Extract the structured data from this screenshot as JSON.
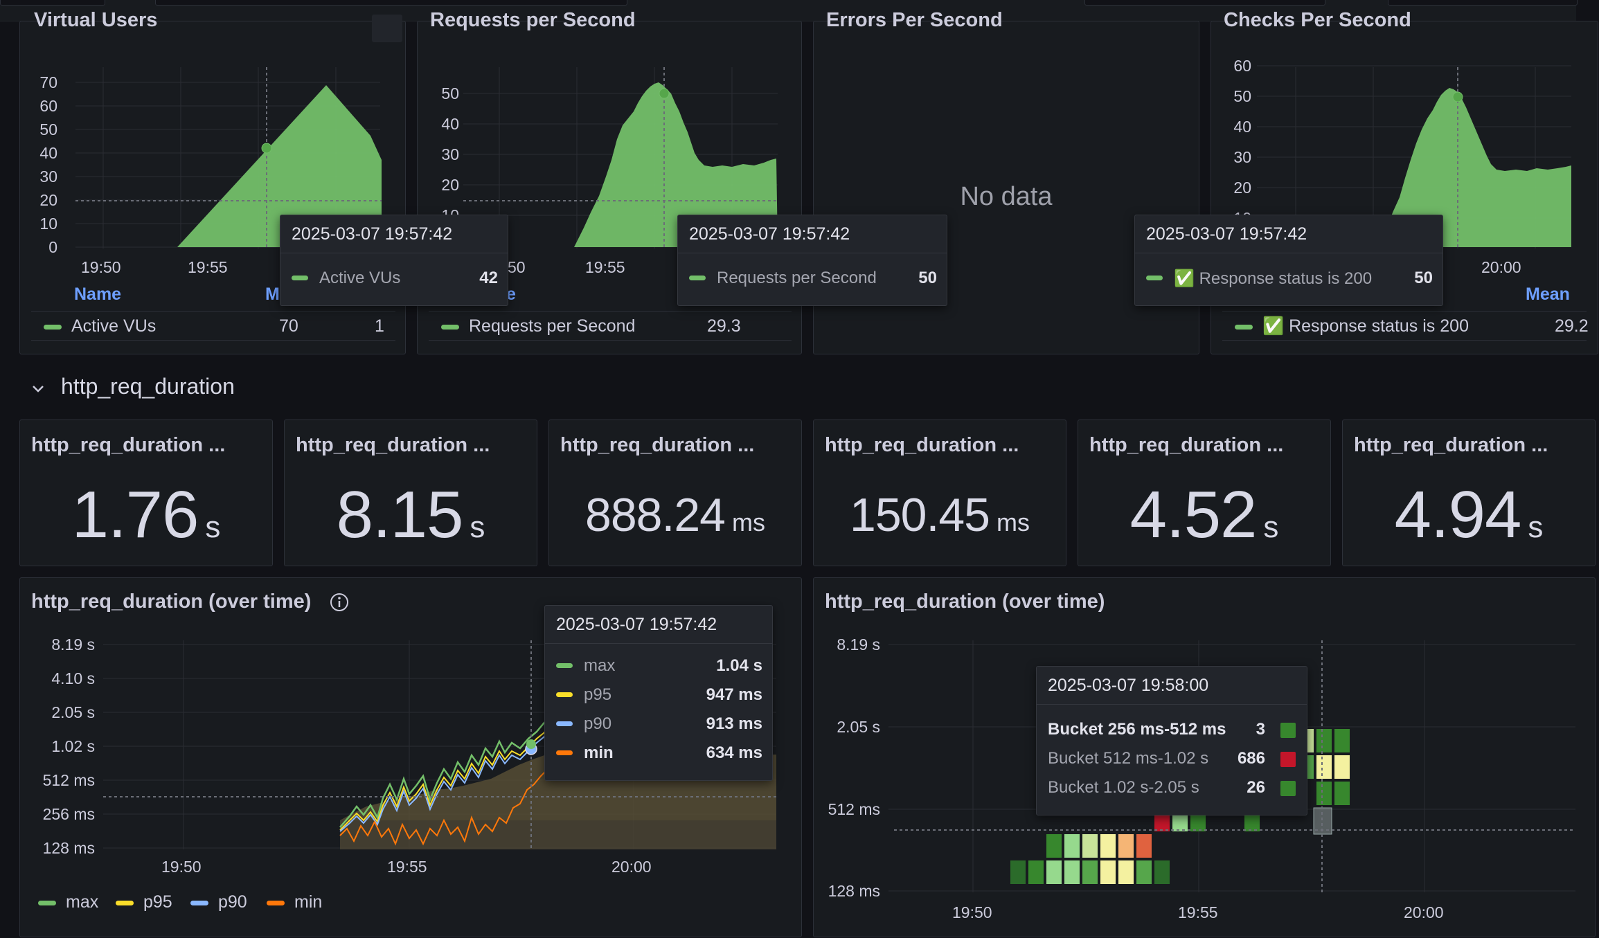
{
  "colors": {
    "background": "#111217",
    "panel": "#181b1f",
    "green": "#73bf69",
    "yellow": "#fade2a",
    "blue": "#8ab8ff",
    "orange": "#ff780a",
    "link": "#6e9fff"
  },
  "panels": {
    "vus": {
      "title": "Virtual Users",
      "y_ticks": [
        "70",
        "60",
        "50",
        "40",
        "30",
        "20",
        "10",
        "0"
      ],
      "x_ticks": [
        "19:50",
        "19:55"
      ],
      "legend_headers": [
        "Name",
        "M"
      ],
      "legend_row": {
        "name": "Active VUs",
        "max": "70",
        "min": "1"
      },
      "tooltip": {
        "time": "2025-03-07 19:57:42",
        "label": "Active VUs",
        "value": "42"
      }
    },
    "rps": {
      "title": "Requests per Second",
      "y_ticks": [
        "50",
        "40",
        "30",
        "20",
        "10"
      ],
      "x_ticks": [
        "50",
        "19:55"
      ],
      "legend_headers": [
        "e"
      ],
      "legend_row": {
        "name": "Requests per Second",
        "mean": "29.3"
      },
      "tooltip": {
        "time": "2025-03-07 19:57:42",
        "label": "Requests per Second",
        "value": "50"
      }
    },
    "errors": {
      "title": "Errors Per Second",
      "no_data": "No data"
    },
    "checks": {
      "title": "Checks Per Second",
      "y_ticks": [
        "60",
        "50",
        "40",
        "30",
        "20",
        "10"
      ],
      "x_ticks": [
        "20:00"
      ],
      "legend_headers": [
        "Mean"
      ],
      "legend_row": {
        "icon": "✅",
        "name": "Response status is 200",
        "mean": "29.2"
      },
      "tooltip": {
        "time": "2025-03-07 19:57:42",
        "icon": "✅",
        "label": "Response status is 200",
        "value": "50"
      }
    }
  },
  "section": {
    "chevron": "⌄",
    "title": "http_req_duration"
  },
  "stats": [
    {
      "title": "http_req_duration ...",
      "value": "1.76",
      "unit": "s"
    },
    {
      "title": "http_req_duration ...",
      "value": "8.15",
      "unit": "s"
    },
    {
      "title": "http_req_duration ...",
      "value": "888.24",
      "unit": "ms"
    },
    {
      "title": "http_req_duration ...",
      "value": "150.45",
      "unit": "ms"
    },
    {
      "title": "http_req_duration ...",
      "value": "4.52",
      "unit": "s"
    },
    {
      "title": "http_req_duration ...",
      "value": "4.94",
      "unit": "s"
    }
  ],
  "duration_lines": {
    "title": "http_req_duration (over time)",
    "info_icon": "info-icon",
    "y_ticks": [
      "8.19 s",
      "4.10 s",
      "2.05 s",
      "1.02 s",
      "512 ms",
      "256 ms",
      "128 ms"
    ],
    "x_ticks": [
      "19:50",
      "19:55",
      "20:00"
    ],
    "legend": [
      {
        "name": "max",
        "color": "#73bf69"
      },
      {
        "name": "p95",
        "color": "#fade2a"
      },
      {
        "name": "p90",
        "color": "#8ab8ff"
      },
      {
        "name": "min",
        "color": "#ff780a"
      }
    ],
    "tooltip": {
      "time": "2025-03-07 19:57:42",
      "rows": [
        {
          "label": "max",
          "value": "1.04 s",
          "color": "#73bf69"
        },
        {
          "label": "p95",
          "value": "947 ms",
          "color": "#fade2a"
        },
        {
          "label": "p90",
          "value": "913 ms",
          "color": "#8ab8ff"
        },
        {
          "label": "min",
          "value": "634 ms",
          "color": "#ff780a"
        }
      ]
    }
  },
  "duration_heatmap": {
    "title": "http_req_duration (over time)",
    "y_ticks": [
      "8.19 s",
      "2.05 s",
      "512 ms",
      "128 ms"
    ],
    "x_ticks": [
      "19:50",
      "19:55",
      "20:00"
    ],
    "tooltip": {
      "time": "2025-03-07 19:58:00",
      "rows": [
        {
          "label": "Bucket 256 ms-512 ms",
          "value": "3",
          "color": "#37872d"
        },
        {
          "label": "Bucket 512 ms-1.02 s",
          "value": "686",
          "color": "#c4162a"
        },
        {
          "label": "Bucket 1.02 s-2.05 s",
          "value": "26",
          "color": "#37872d"
        }
      ]
    }
  }
}
